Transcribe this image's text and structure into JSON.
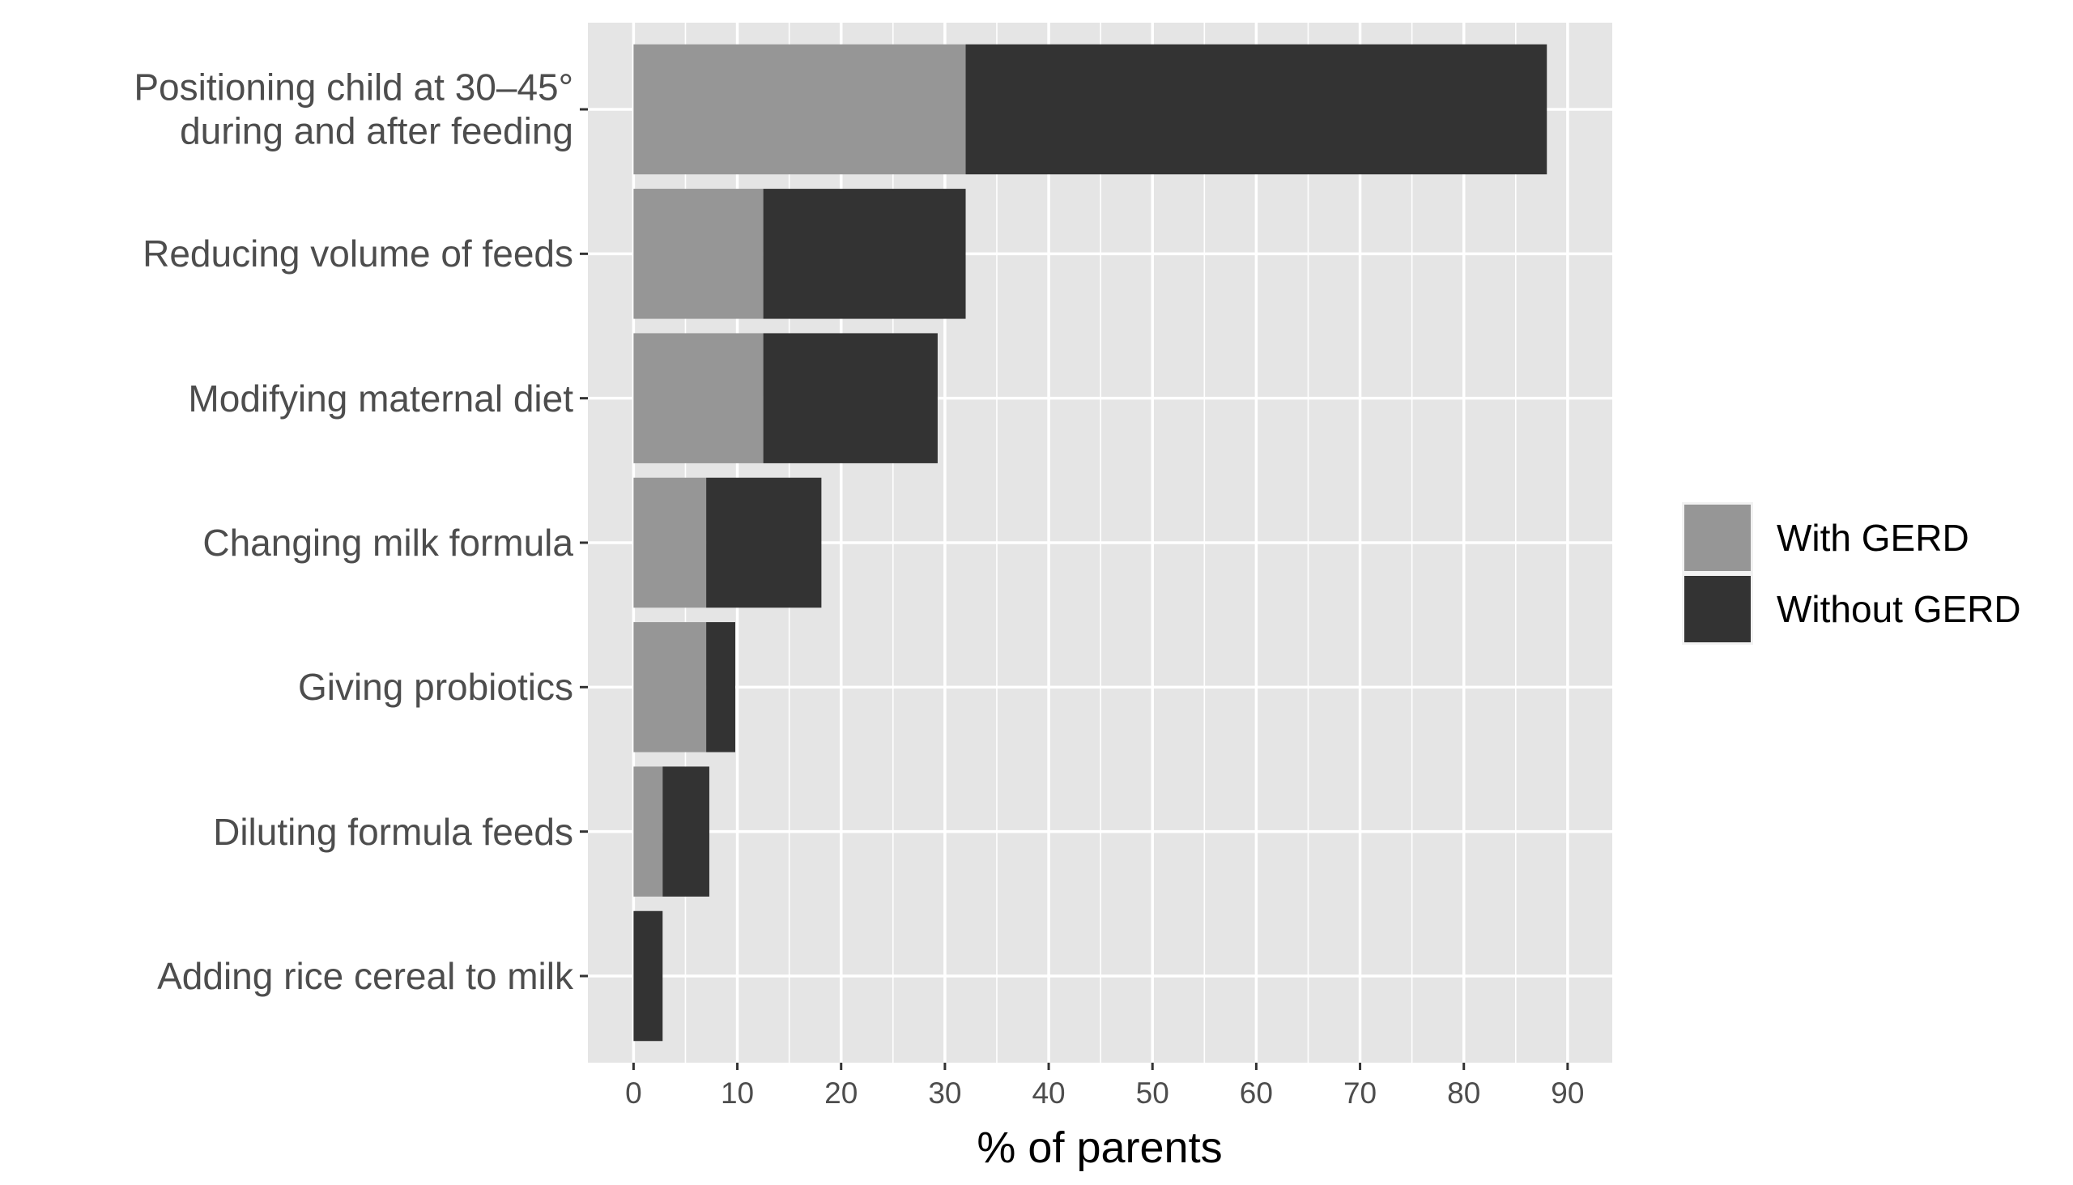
{
  "chart_data": {
    "type": "stacked-barh",
    "xlabel": "% of parents",
    "categories": [
      "Positioning child at 30–45°\nduring and after feeding",
      "Reducing volume of feeds",
      "Modifying maternal diet",
      "Changing milk formula",
      "Giving probiotics",
      "Diluting formula feeds",
      "Adding rice cereal to milk"
    ],
    "series": [
      {
        "name": "With GERD",
        "color": "#969696",
        "values": [
          32,
          12.5,
          12.5,
          7,
          7,
          2.8,
          0
        ]
      },
      {
        "name": "Without GERD",
        "color": "#333333",
        "values": [
          56,
          19.5,
          16.8,
          11.1,
          2.8,
          4.5,
          2.8
        ]
      }
    ],
    "xlim": [
      -4.4,
      94.3
    ],
    "xticks": [
      0,
      10,
      20,
      30,
      40,
      50,
      60,
      70,
      80,
      90
    ],
    "grid": true,
    "legend": "right"
  }
}
